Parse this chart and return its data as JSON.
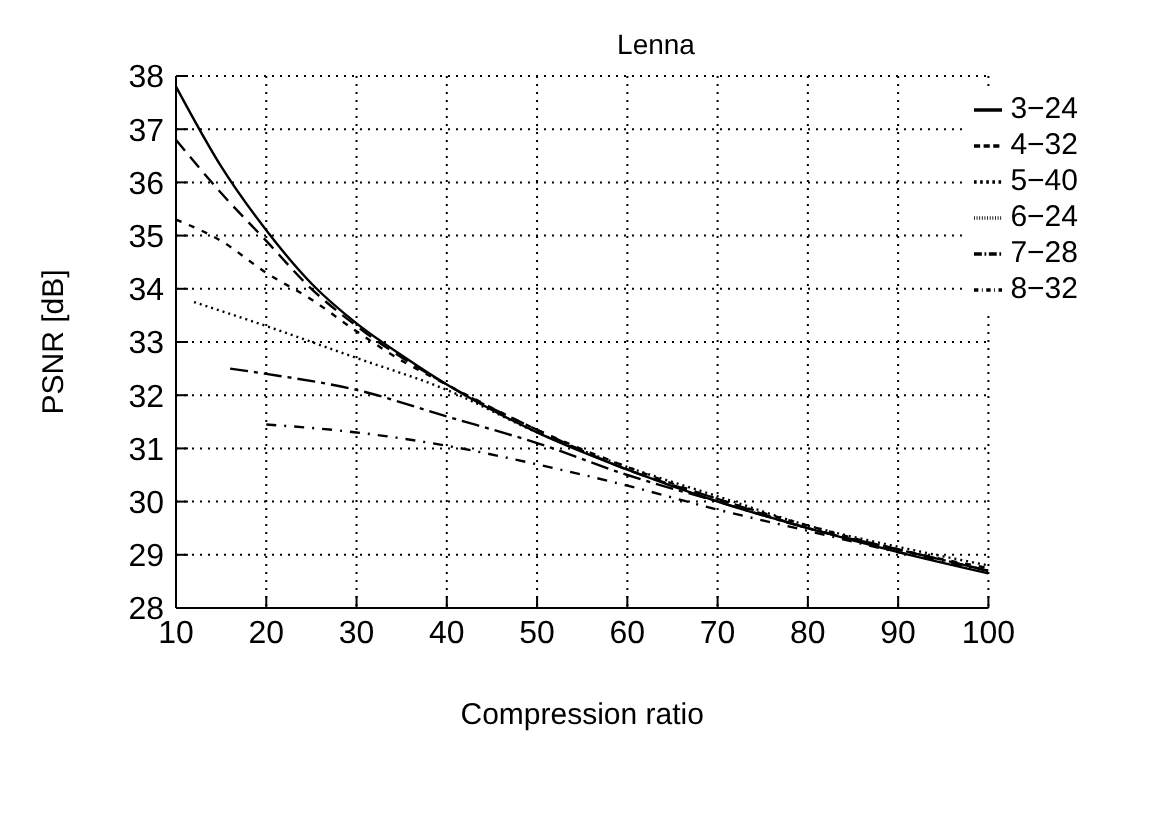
{
  "chart_data": {
    "type": "line",
    "title": "Lenna",
    "xlabel": "Compression ratio",
    "ylabel": "PSNR [dB]",
    "xlim": [
      10,
      100
    ],
    "ylim": [
      28,
      38
    ],
    "xticks": [
      10,
      20,
      30,
      40,
      50,
      60,
      70,
      80,
      90,
      100
    ],
    "yticks": [
      28,
      29,
      30,
      31,
      32,
      33,
      34,
      35,
      36,
      37,
      38
    ],
    "grid": true,
    "legend": "top right",
    "marker": "none",
    "series": [
      {
        "name": "3−24",
        "color": "#000000",
        "line_style": "solid",
        "x": [
          10,
          15,
          20,
          25,
          30,
          35,
          40,
          50,
          60,
          70,
          80,
          90,
          100
        ],
        "values": [
          37.8,
          36.3,
          35.1,
          34.1,
          33.35,
          32.75,
          32.2,
          31.3,
          30.6,
          30.0,
          29.5,
          29.05,
          28.65
        ]
      },
      {
        "name": "4−32",
        "color": "#000000",
        "line_style": "dashed",
        "x": [
          10,
          15,
          20,
          25,
          30,
          40,
          50,
          60,
          70,
          80,
          90,
          100
        ],
        "values": [
          36.8,
          35.8,
          34.9,
          34.0,
          33.3,
          32.2,
          31.35,
          30.6,
          30.05,
          29.5,
          29.1,
          28.7
        ]
      },
      {
        "name": "5−40",
        "color": "#000000",
        "line_style": "dashed",
        "x": [
          10,
          15,
          20,
          25,
          30,
          35,
          40,
          50,
          60,
          70,
          80,
          90,
          100
        ],
        "values": [
          35.3,
          34.9,
          34.3,
          33.8,
          33.2,
          32.65,
          32.2,
          31.35,
          30.65,
          30.05,
          29.55,
          29.1,
          28.75
        ]
      },
      {
        "name": "6−24",
        "color": "#000000",
        "line_style": "dotted",
        "x": [
          12,
          20,
          30,
          40,
          50,
          60,
          70,
          80,
          90,
          100
        ],
        "values": [
          33.75,
          33.3,
          32.7,
          32.1,
          31.3,
          30.65,
          30.1,
          29.55,
          29.15,
          28.8
        ]
      },
      {
        "name": "7−28",
        "color": "#000000",
        "line_style": "dashdot",
        "x": [
          16,
          20,
          30,
          40,
          50,
          60,
          70,
          80,
          90,
          100
        ],
        "values": [
          32.5,
          32.4,
          32.1,
          31.6,
          31.1,
          30.5,
          30.0,
          29.5,
          29.1,
          28.7
        ]
      },
      {
        "name": "8−32",
        "color": "#000000",
        "line_style": "dashdot",
        "x": [
          20,
          30,
          40,
          50,
          60,
          70,
          80,
          90,
          100
        ],
        "values": [
          31.45,
          31.3,
          31.05,
          30.7,
          30.3,
          29.85,
          29.45,
          29.05,
          28.7
        ]
      }
    ]
  }
}
